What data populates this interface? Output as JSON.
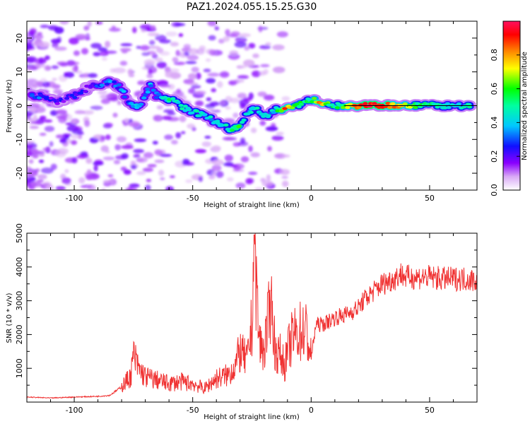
{
  "figure_title": "PAZ1.2024.055.15.25.G30",
  "chart_data": [
    {
      "type": "heatmap",
      "xlabel": "Height of straight line (km)",
      "ylabel": "Frequency (Hz)",
      "xlim": [
        -120,
        70
      ],
      "ylim": [
        -25,
        25
      ],
      "x_ticks": [
        -100,
        -50,
        0,
        50
      ],
      "x_tick_labels": [
        "-100",
        "-50",
        "0",
        "50"
      ],
      "y_ticks": [
        -20,
        -10,
        0,
        10,
        20
      ],
      "y_tick_labels": [
        "-20",
        "-10",
        "0",
        "10",
        "20"
      ],
      "colorbar": {
        "label": "Normalized spectral amplitude",
        "range": [
          0,
          1
        ],
        "ticks": [
          0,
          0.2,
          0.4,
          0.6,
          0.8
        ],
        "tick_labels": [
          "0.0",
          "0.2",
          "0.4",
          "0.6",
          "0.8"
        ],
        "colormap": "rainbow"
      },
      "ridge": [
        {
          "x": -118,
          "f": 3,
          "amp": 0.25
        },
        {
          "x": -113,
          "f": 3,
          "amp": 0.3
        },
        {
          "x": -108,
          "f": 1,
          "amp": 0.2
        },
        {
          "x": -100,
          "f": 3,
          "amp": 0.2
        },
        {
          "x": -92,
          "f": 6,
          "amp": 0.25
        },
        {
          "x": -85,
          "f": 7,
          "amp": 0.3
        },
        {
          "x": -80,
          "f": 5,
          "amp": 0.3
        },
        {
          "x": -77,
          "f": 0,
          "amp": 0.35
        },
        {
          "x": -72,
          "f": 0,
          "amp": 0.4
        },
        {
          "x": -68,
          "f": 6,
          "amp": 0.35
        },
        {
          "x": -65,
          "f": 3,
          "amp": 0.3
        },
        {
          "x": -60,
          "f": 2,
          "amp": 0.5
        },
        {
          "x": -55,
          "f": 0,
          "amp": 0.45
        },
        {
          "x": -50,
          "f": -2,
          "amp": 0.45
        },
        {
          "x": -45,
          "f": -3,
          "amp": 0.4
        },
        {
          "x": -40,
          "f": -5,
          "amp": 0.4
        },
        {
          "x": -35,
          "f": -7,
          "amp": 0.45
        },
        {
          "x": -30,
          "f": -6,
          "amp": 0.55
        },
        {
          "x": -27,
          "f": -2,
          "amp": 0.4
        },
        {
          "x": -23,
          "f": -1,
          "amp": 0.45
        },
        {
          "x": -19,
          "f": -3,
          "amp": 0.35
        },
        {
          "x": -15,
          "f": -1,
          "amp": 0.4
        },
        {
          "x": -11,
          "f": -1,
          "amp": 0.85
        },
        {
          "x": -5,
          "f": 0,
          "amp": 0.55
        },
        {
          "x": 0,
          "f": 2,
          "amp": 0.5
        },
        {
          "x": 3,
          "f": 1,
          "amp": 0.8
        },
        {
          "x": 8,
          "f": 0,
          "amp": 0.5
        },
        {
          "x": 13,
          "f": 0,
          "amp": 0.55
        },
        {
          "x": 18,
          "f": 0,
          "amp": 0.85
        },
        {
          "x": 25,
          "f": 0,
          "amp": 0.95
        },
        {
          "x": 32,
          "f": 0,
          "amp": 0.85
        },
        {
          "x": 39,
          "f": 0,
          "amp": 0.75
        },
        {
          "x": 45,
          "f": 0,
          "amp": 0.55
        },
        {
          "x": 52,
          "f": 0,
          "amp": 0.5
        },
        {
          "x": 60,
          "f": 0,
          "amp": 0.45
        },
        {
          "x": 68,
          "f": 0,
          "amp": 0.45
        }
      ]
    },
    {
      "type": "line",
      "xlabel": "Height of straight line (km)",
      "ylabel": "SNR (10 * v/v)",
      "xlim": [
        -120,
        70
      ],
      "ylim": [
        0,
        5000
      ],
      "x_ticks": [
        -100,
        -50,
        0,
        50
      ],
      "x_tick_labels": [
        "-100",
        "-50",
        "0",
        "50"
      ],
      "y_ticks": [
        1000,
        2000,
        3000,
        4000,
        5000
      ],
      "y_tick_labels": [
        "1000",
        "2000",
        "3000",
        "4000",
        "5000"
      ],
      "line_color": "#f03232",
      "series": [
        {
          "x": [
            -120,
            -110,
            -100,
            -90,
            -85,
            -80,
            -76,
            -75,
            -73,
            -70,
            -65,
            -60,
            -55,
            -50,
            -45,
            -40,
            -35,
            -32,
            -30,
            -27,
            -25,
            -24,
            -22,
            -20,
            -17,
            -15,
            -13,
            -11,
            -10,
            -8,
            -5,
            -2,
            0,
            2,
            5,
            10,
            15,
            20,
            22,
            25,
            30,
            35,
            38,
            40,
            45,
            50,
            55,
            60,
            65,
            70
          ],
          "y": [
            150,
            120,
            150,
            170,
            200,
            450,
            800,
            1400,
            1000,
            750,
            650,
            550,
            600,
            550,
            400,
            700,
            800,
            1100,
            1500,
            1200,
            2300,
            4950,
            1800,
            1500,
            2900,
            1500,
            1400,
            1100,
            1500,
            1900,
            2100,
            2100,
            1300,
            2300,
            2300,
            2500,
            2600,
            2800,
            3000,
            3200,
            3500,
            3650,
            3800,
            3700,
            3700,
            3700,
            3650,
            3650,
            3650,
            3600
          ]
        }
      ]
    }
  ]
}
